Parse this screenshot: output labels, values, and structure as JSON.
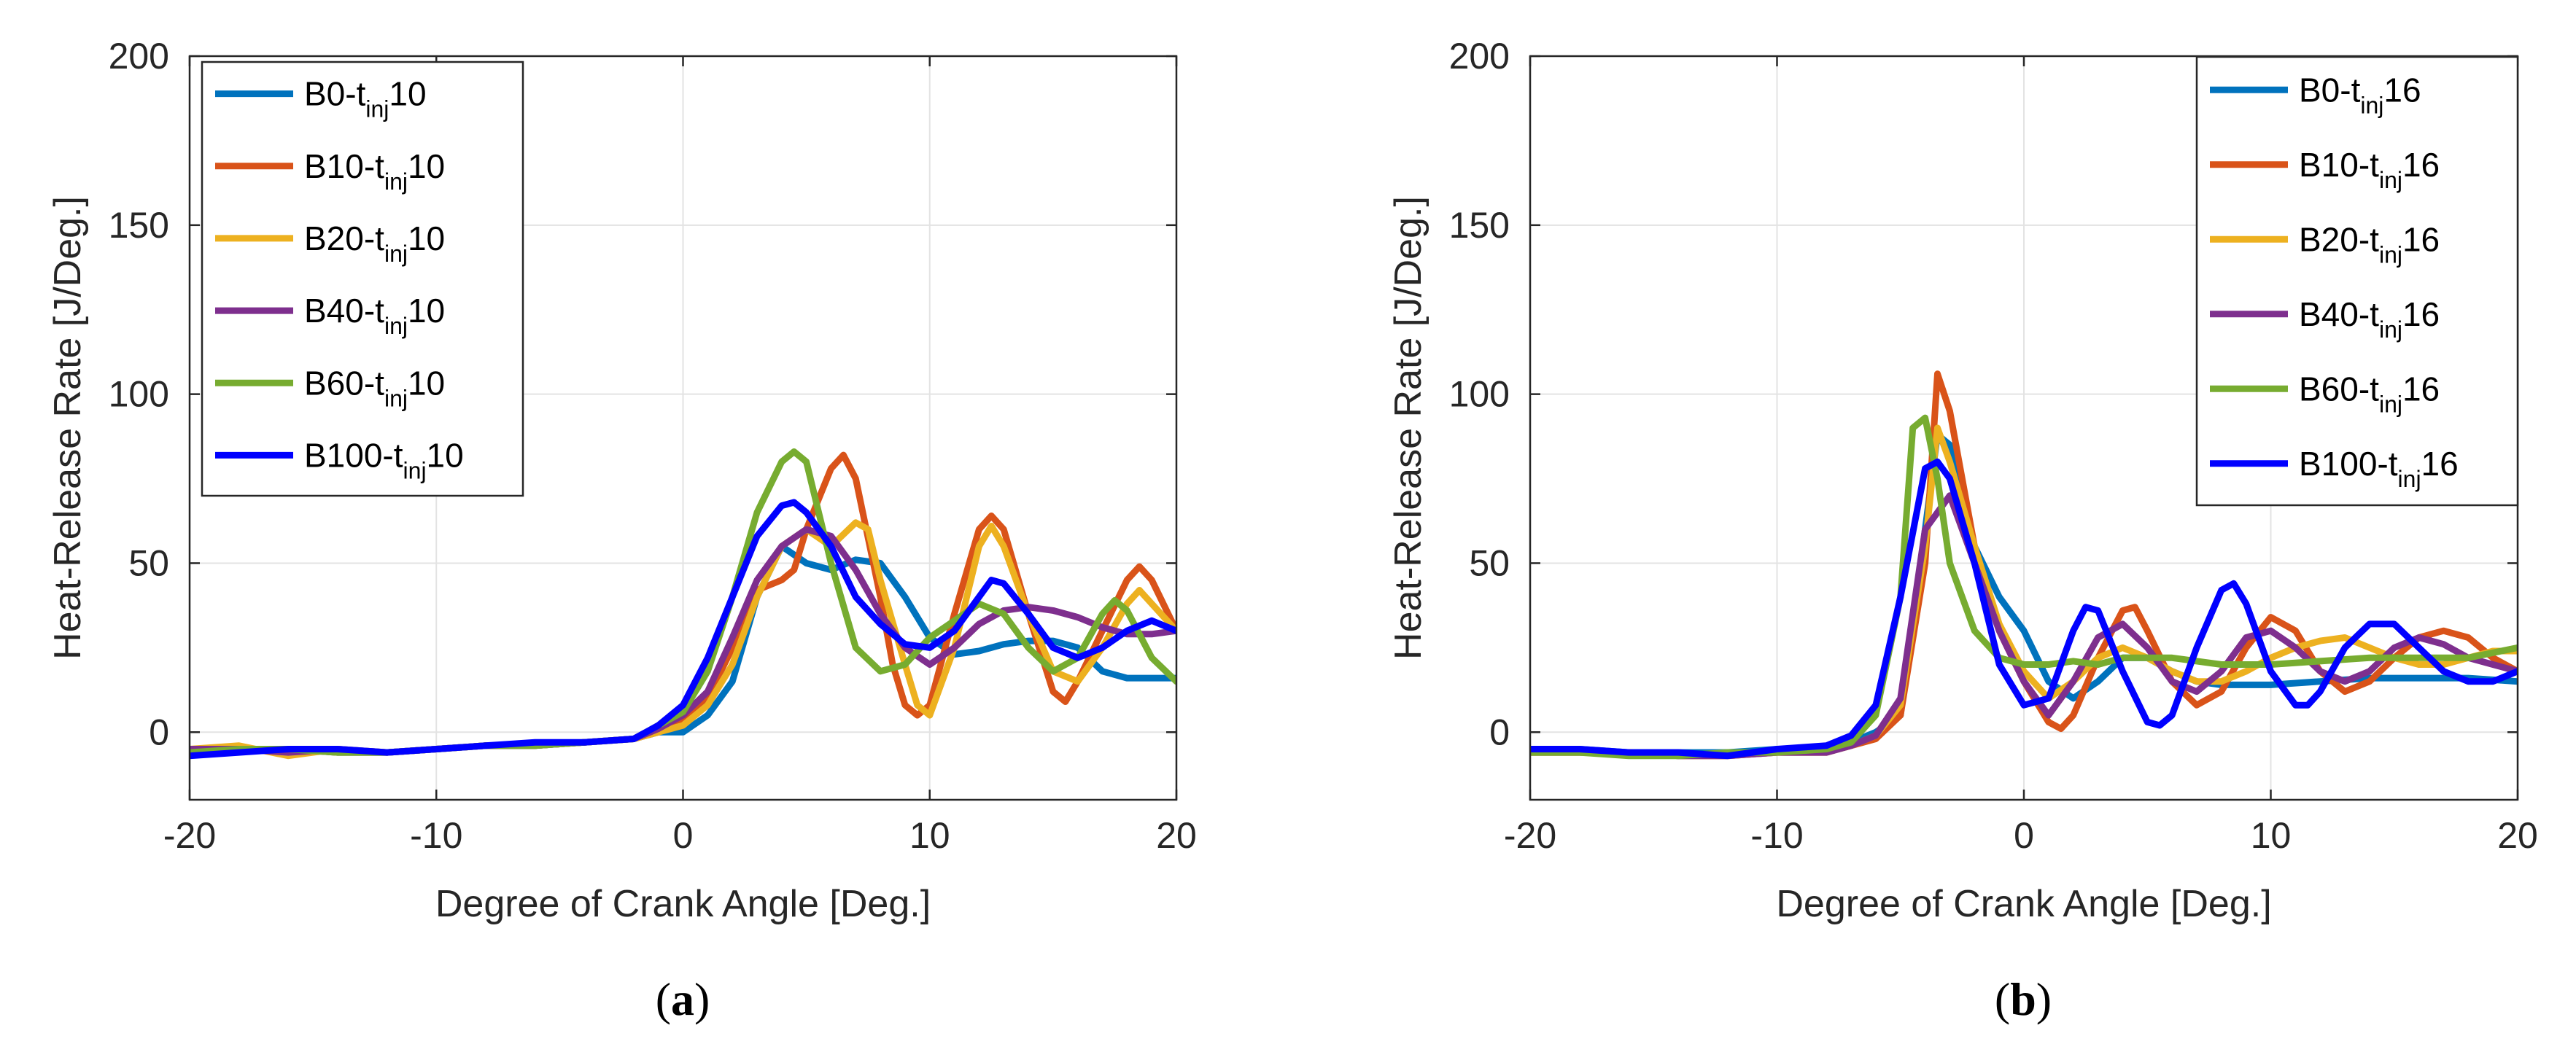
{
  "chart_data": [
    {
      "type": "line",
      "panel": "a",
      "caption_open": "(",
      "caption_letter": "a",
      "caption_close": ")",
      "xlabel": "Degree of Crank Angle [Deg.]",
      "ylabel": "Heat-Release Rate [J/Deg.]",
      "xlim": [
        -20,
        20
      ],
      "ylim": [
        -20,
        200
      ],
      "xticks": [
        -20,
        -10,
        0,
        10,
        20
      ],
      "yticks": [
        0,
        50,
        100,
        150,
        200
      ],
      "grid": true,
      "legend_position": "top-left",
      "series": [
        {
          "name": "B0-t",
          "sub": "inj",
          "suffix": "10",
          "color": "#0072BD",
          "x": [
            -20,
            -18,
            -16,
            -14,
            -12,
            -10,
            -8,
            -6,
            -4,
            -2,
            -1,
            0,
            1,
            2,
            3,
            4,
            5,
            6,
            7,
            8,
            9,
            10,
            11,
            12,
            13,
            14,
            15,
            16,
            17,
            18,
            19,
            20
          ],
          "y": [
            -5,
            -5,
            -5,
            -6,
            -6,
            -5,
            -4,
            -4,
            -3,
            -2,
            0,
            0,
            5,
            15,
            40,
            55,
            50,
            48,
            51,
            50,
            40,
            28,
            23,
            24,
            26,
            27,
            27,
            25,
            18,
            16,
            16,
            16
          ]
        },
        {
          "name": "B10-t",
          "sub": "inj",
          "suffix": "10",
          "color": "#D95319",
          "x": [
            -20,
            -18,
            -16,
            -14,
            -12,
            -10,
            -8,
            -6,
            -4,
            -2,
            -1,
            0,
            1,
            2,
            3,
            4,
            4.5,
            5,
            6,
            6.5,
            7,
            8,
            8.5,
            9,
            9.5,
            10,
            11,
            12,
            12.5,
            13,
            14,
            15,
            15.5,
            16,
            17,
            18,
            18.5,
            19,
            20
          ],
          "y": [
            -5,
            -5,
            -5,
            -6,
            -6,
            -5,
            -4,
            -4,
            -3,
            -2,
            0,
            3,
            10,
            25,
            42,
            45,
            48,
            60,
            78,
            82,
            75,
            40,
            20,
            8,
            5,
            8,
            35,
            60,
            64,
            60,
            35,
            12,
            9,
            15,
            30,
            45,
            49,
            45,
            30
          ]
        },
        {
          "name": "B20-t",
          "sub": "inj",
          "suffix": "10",
          "color": "#EDB120",
          "x": [
            -20,
            -18,
            -16,
            -14,
            -12,
            -10,
            -8,
            -6,
            -4,
            -2,
            -1,
            0,
            1,
            2,
            3,
            4,
            5,
            6,
            7,
            7.5,
            8,
            9,
            9.5,
            10,
            11,
            12,
            12.5,
            13,
            14,
            15,
            16,
            17,
            18,
            18.5,
            19,
            20
          ],
          "y": [
            -5,
            -4,
            -7,
            -5,
            -6,
            -5,
            -4,
            -4,
            -3,
            -2,
            0,
            2,
            8,
            20,
            40,
            55,
            60,
            55,
            62,
            60,
            45,
            20,
            8,
            5,
            25,
            55,
            61,
            55,
            35,
            18,
            15,
            25,
            38,
            42,
            38,
            30
          ]
        },
        {
          "name": "B40-t",
          "sub": "inj",
          "suffix": "10",
          "color": "#7E2F8E",
          "x": [
            -20,
            -18,
            -16,
            -14,
            -12,
            -10,
            -8,
            -6,
            -4,
            -2,
            -1,
            0,
            1,
            2,
            3,
            4,
            5,
            6,
            7,
            8,
            9,
            10,
            11,
            12,
            13,
            14,
            15,
            16,
            17,
            18,
            19,
            20
          ],
          "y": [
            -5,
            -5,
            -6,
            -5,
            -6,
            -5,
            -4,
            -4,
            -3,
            -2,
            1,
            5,
            12,
            28,
            45,
            55,
            60,
            58,
            48,
            35,
            25,
            20,
            25,
            32,
            36,
            37,
            36,
            34,
            31,
            29,
            29,
            30
          ]
        },
        {
          "name": "B60-t",
          "sub": "inj",
          "suffix": "10",
          "color": "#77AC30",
          "x": [
            -20,
            -18,
            -16,
            -14,
            -12,
            -10,
            -8,
            -6,
            -4,
            -2,
            -1,
            0,
            1,
            2,
            3,
            4,
            4.5,
            5,
            6,
            7,
            8,
            9,
            10,
            11,
            12,
            13,
            14,
            15,
            16,
            17,
            17.5,
            18,
            19,
            20
          ],
          "y": [
            -6,
            -5,
            -5,
            -6,
            -6,
            -5,
            -4,
            -4,
            -3,
            -2,
            2,
            6,
            18,
            40,
            65,
            80,
            83,
            80,
            50,
            25,
            18,
            20,
            28,
            33,
            38,
            35,
            25,
            18,
            22,
            35,
            39,
            36,
            22,
            15
          ]
        },
        {
          "name": "B100-t",
          "sub": "inj",
          "suffix": "10",
          "color": "#0000FF",
          "x": [
            -20,
            -18,
            -16,
            -14,
            -12,
            -10,
            -8,
            -6,
            -4,
            -2,
            -1,
            0,
            1,
            2,
            3,
            4,
            4.5,
            5,
            6,
            7,
            8,
            9,
            10,
            11,
            12,
            12.5,
            13,
            14,
            15,
            16,
            17,
            18,
            19,
            20
          ],
          "y": [
            -7,
            -6,
            -5,
            -5,
            -6,
            -5,
            -4,
            -3,
            -3,
            -2,
            2,
            8,
            22,
            40,
            58,
            67,
            68,
            65,
            55,
            40,
            32,
            26,
            25,
            30,
            40,
            45,
            44,
            35,
            25,
            22,
            25,
            30,
            33,
            30
          ]
        }
      ]
    },
    {
      "type": "line",
      "panel": "b",
      "caption_open": "(",
      "caption_letter": "b",
      "caption_close": ")",
      "xlabel": "Degree of Crank Angle [Deg.]",
      "ylabel": "Heat-Release Rate [J/Deg.]",
      "xlim": [
        -20,
        20
      ],
      "ylim": [
        -20,
        200
      ],
      "xticks": [
        -20,
        -10,
        0,
        10,
        20
      ],
      "yticks": [
        0,
        50,
        100,
        150,
        200
      ],
      "grid": true,
      "legend_position": "top-right",
      "series": [
        {
          "name": "B0-t",
          "sub": "inj",
          "suffix": "16",
          "color": "#0072BD",
          "x": [
            -20,
            -18,
            -16,
            -14,
            -12,
            -10,
            -8,
            -7,
            -6,
            -5,
            -4,
            -3.5,
            -3,
            -2,
            -1,
            0,
            1,
            2,
            3,
            4,
            5,
            6,
            7,
            8,
            9,
            10,
            12,
            14,
            16,
            18,
            20
          ],
          "y": [
            -5,
            -5,
            -6,
            -6,
            -6,
            -5,
            -5,
            -3,
            0,
            5,
            60,
            88,
            85,
            55,
            40,
            30,
            15,
            10,
            15,
            22,
            22,
            18,
            15,
            14,
            14,
            14,
            15,
            16,
            16,
            16,
            15
          ]
        },
        {
          "name": "B10-t",
          "sub": "inj",
          "suffix": "16",
          "color": "#D95319",
          "x": [
            -20,
            -18,
            -16,
            -14,
            -12,
            -10,
            -8,
            -7,
            -6,
            -5,
            -4,
            -3.5,
            -3,
            -2,
            -1,
            0,
            1,
            1.5,
            2,
            3,
            4,
            4.5,
            5,
            6,
            7,
            8,
            9,
            10,
            11,
            12,
            13,
            14,
            15,
            16,
            17,
            18,
            19,
            20
          ],
          "y": [
            -6,
            -6,
            -6,
            -7,
            -7,
            -6,
            -6,
            -4,
            -2,
            5,
            50,
            106,
            95,
            55,
            30,
            15,
            3,
            1,
            5,
            22,
            36,
            37,
            30,
            15,
            8,
            12,
            25,
            34,
            30,
            18,
            12,
            15,
            22,
            28,
            30,
            28,
            22,
            18
          ]
        },
        {
          "name": "B20-t",
          "sub": "inj",
          "suffix": "16",
          "color": "#EDB120",
          "x": [
            -20,
            -18,
            -16,
            -14,
            -12,
            -10,
            -8,
            -7,
            -6,
            -5,
            -4,
            -3.5,
            -3,
            -2,
            -1,
            0,
            1,
            2,
            3,
            4,
            5,
            6,
            7,
            8,
            9,
            10,
            11,
            12,
            13,
            14,
            15,
            16,
            17,
            18,
            19,
            20
          ],
          "y": [
            -6,
            -6,
            -6,
            -7,
            -7,
            -6,
            -6,
            -4,
            -1,
            8,
            55,
            90,
            80,
            55,
            32,
            18,
            10,
            15,
            22,
            25,
            22,
            18,
            15,
            15,
            18,
            22,
            25,
            27,
            28,
            25,
            22,
            20,
            20,
            22,
            24,
            24
          ]
        },
        {
          "name": "B40-t",
          "sub": "inj",
          "suffix": "16",
          "color": "#7E2F8E",
          "x": [
            -20,
            -18,
            -16,
            -14,
            -12,
            -10,
            -8,
            -7,
            -6,
            -5,
            -4,
            -3,
            -2,
            -1,
            0,
            1,
            2,
            3,
            4,
            5,
            6,
            7,
            8,
            9,
            10,
            11,
            12,
            13,
            14,
            15,
            16,
            17,
            18,
            19,
            20
          ],
          "y": [
            -6,
            -6,
            -6,
            -7,
            -7,
            -6,
            -6,
            -4,
            -1,
            10,
            60,
            70,
            50,
            30,
            15,
            5,
            15,
            28,
            32,
            25,
            15,
            12,
            18,
            28,
            30,
            25,
            18,
            15,
            18,
            25,
            28,
            26,
            22,
            20,
            18
          ]
        },
        {
          "name": "B60-t",
          "sub": "inj",
          "suffix": "16",
          "color": "#77AC30",
          "x": [
            -20,
            -18,
            -16,
            -14,
            -12,
            -10,
            -8,
            -7,
            -6,
            -5,
            -4.5,
            -4,
            -3.5,
            -3,
            -2,
            -1,
            0,
            1,
            2,
            3,
            4,
            6,
            8,
            10,
            12,
            14,
            16,
            18,
            20
          ],
          "y": [
            -6,
            -6,
            -7,
            -7,
            -6,
            -6,
            -5,
            -3,
            5,
            40,
            90,
            93,
            75,
            50,
            30,
            22,
            20,
            20,
            21,
            20,
            22,
            22,
            20,
            20,
            21,
            22,
            22,
            22,
            25
          ]
        },
        {
          "name": "B100-t",
          "sub": "inj",
          "suffix": "16",
          "color": "#0000FF",
          "x": [
            -20,
            -18,
            -16,
            -14,
            -12,
            -10,
            -8,
            -7,
            -6,
            -5,
            -4,
            -3.5,
            -3,
            -2,
            -1,
            0,
            1,
            2,
            2.5,
            3,
            4,
            5,
            5.5,
            6,
            7,
            8,
            8.5,
            9,
            10,
            11,
            11.5,
            12,
            13,
            14,
            15,
            16,
            17,
            18,
            19,
            20
          ],
          "y": [
            -5,
            -5,
            -6,
            -6,
            -7,
            -5,
            -4,
            -1,
            8,
            40,
            78,
            80,
            75,
            50,
            20,
            8,
            10,
            30,
            37,
            36,
            18,
            3,
            2,
            5,
            25,
            42,
            44,
            38,
            18,
            8,
            8,
            12,
            25,
            32,
            32,
            25,
            18,
            15,
            15,
            18
          ]
        }
      ]
    }
  ]
}
